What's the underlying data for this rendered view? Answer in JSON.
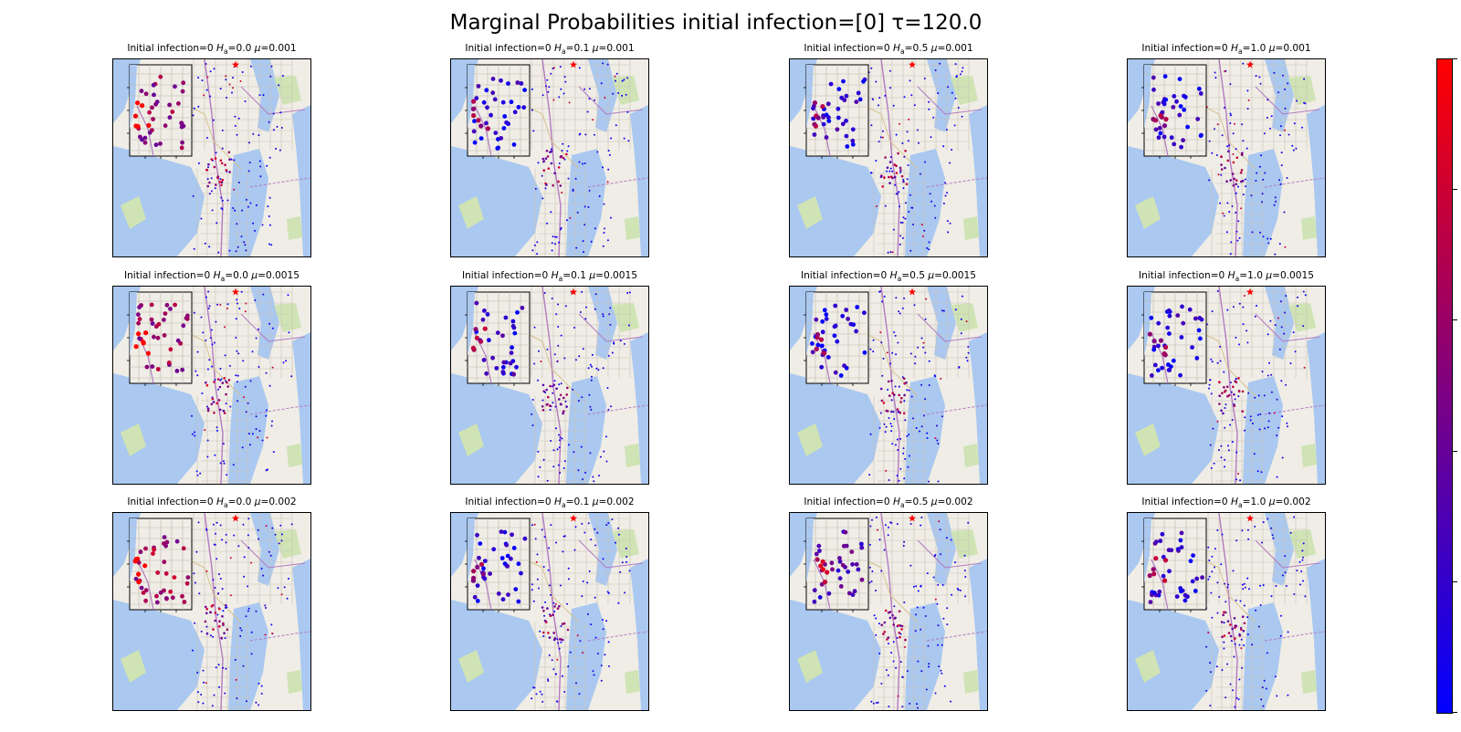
{
  "figure": {
    "title": "Marginal Probabilities initial infection=[0] τ=120.0"
  },
  "colors": {
    "low": "#0000ff",
    "high": "#ff0000",
    "water": "#aac8f0",
    "land": "#efede6",
    "park": "#cfe3b4",
    "initial_marker": "#ff0000",
    "highway": "#b37ac0",
    "road": "#d8c28e"
  },
  "chart_data": {
    "type": "scatter",
    "title": "Marginal Probabilities initial infection=[0] τ=120.0",
    "colormap": "blue-to-red",
    "colorbar": {
      "ticks_shown": 6,
      "tick_labels": []
    },
    "background": "street map tiles",
    "marker": "initial infection site (red star)",
    "grid": {
      "rows": 3,
      "cols": 4
    },
    "panels": [
      {
        "row": 0,
        "col": 0,
        "initial_infection": "0",
        "H_a": "0.0",
        "mu": "0.001",
        "inset_intensity": 0.55
      },
      {
        "row": 0,
        "col": 1,
        "initial_infection": "0",
        "H_a": "0.1",
        "mu": "0.001",
        "inset_intensity": 0.12
      },
      {
        "row": 0,
        "col": 2,
        "initial_infection": "0",
        "H_a": "0.5",
        "mu": "0.001",
        "inset_intensity": 0.14
      },
      {
        "row": 0,
        "col": 3,
        "initial_infection": "0",
        "H_a": "1.0",
        "mu": "0.001",
        "inset_intensity": 0.12
      },
      {
        "row": 1,
        "col": 0,
        "initial_infection": "0",
        "H_a": "0.0",
        "mu": "0.0015",
        "inset_intensity": 0.6
      },
      {
        "row": 1,
        "col": 1,
        "initial_infection": "0",
        "H_a": "0.1",
        "mu": "0.0015",
        "inset_intensity": 0.18
      },
      {
        "row": 1,
        "col": 2,
        "initial_infection": "0",
        "H_a": "0.5",
        "mu": "0.0015",
        "inset_intensity": 0.12
      },
      {
        "row": 1,
        "col": 3,
        "initial_infection": "0",
        "H_a": "1.0",
        "mu": "0.0015",
        "inset_intensity": 0.14
      },
      {
        "row": 2,
        "col": 0,
        "initial_infection": "0",
        "H_a": "0.0",
        "mu": "0.002",
        "inset_intensity": 0.62
      },
      {
        "row": 2,
        "col": 1,
        "initial_infection": "0",
        "H_a": "0.1",
        "mu": "0.002",
        "inset_intensity": 0.12
      },
      {
        "row": 2,
        "col": 2,
        "initial_infection": "0",
        "H_a": "0.5",
        "mu": "0.002",
        "inset_intensity": 0.3
      },
      {
        "row": 2,
        "col": 3,
        "initial_infection": "0",
        "H_a": "1.0",
        "mu": "0.002",
        "inset_intensity": 0.2
      }
    ]
  }
}
